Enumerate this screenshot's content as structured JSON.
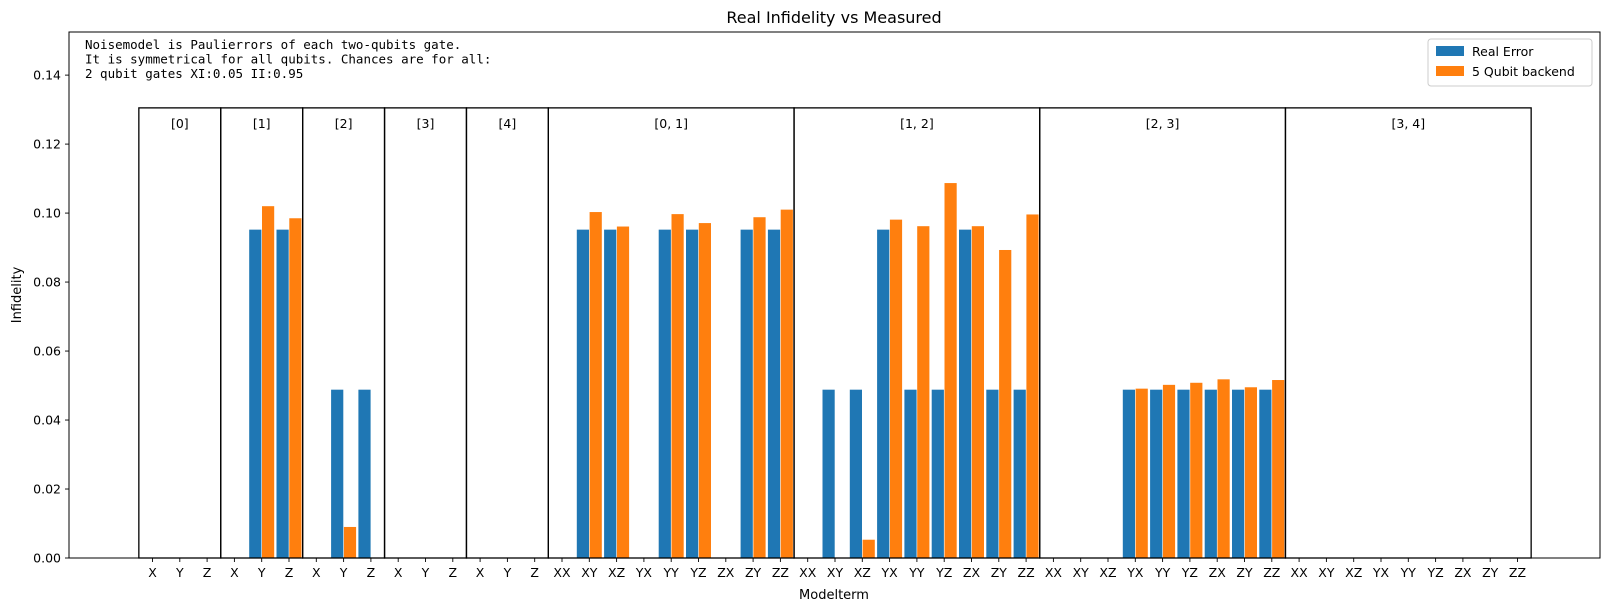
{
  "chart_data": {
    "type": "bar",
    "title": "Real Infidelity vs Measured",
    "xlabel": "Modelterm",
    "ylabel": "Infidelity",
    "ylim": [
      0,
      0.1525
    ],
    "yticks": [
      "0.00",
      "0.02",
      "0.04",
      "0.06",
      "0.08",
      "0.10",
      "0.12",
      "0.14"
    ],
    "annotation_lines": [
      "Noisemodel is Paulierrors of each two-qubits gate.",
      "It is symmetrical for all qubits. Chances are for all:",
      "2 qubit gates XI:0.05   II:0.95"
    ],
    "legend_position": "top-right",
    "colors": {
      "Real Error": "#1f77b4",
      "5 Qubit backend": "#ff7f0e"
    },
    "groups": [
      {
        "label": "[0]",
        "terms": [
          "X",
          "Y",
          "Z"
        ]
      },
      {
        "label": "[1]",
        "terms": [
          "X",
          "Y",
          "Z"
        ]
      },
      {
        "label": "[2]",
        "terms": [
          "X",
          "Y",
          "Z"
        ]
      },
      {
        "label": "[3]",
        "terms": [
          "X",
          "Y",
          "Z"
        ]
      },
      {
        "label": "[4]",
        "terms": [
          "X",
          "Y",
          "Z"
        ]
      },
      {
        "label": "[0, 1]",
        "terms": [
          "XX",
          "XY",
          "XZ",
          "YX",
          "YY",
          "YZ",
          "ZX",
          "ZY",
          "ZZ"
        ]
      },
      {
        "label": "[1, 2]",
        "terms": [
          "XX",
          "XY",
          "XZ",
          "YX",
          "YY",
          "YZ",
          "ZX",
          "ZY",
          "ZZ"
        ]
      },
      {
        "label": "[2, 3]",
        "terms": [
          "XX",
          "XY",
          "XZ",
          "YX",
          "YY",
          "YZ",
          "ZX",
          "ZY",
          "ZZ"
        ]
      },
      {
        "label": "[3, 4]",
        "terms": [
          "XX",
          "XY",
          "XZ",
          "YX",
          "YY",
          "YZ",
          "ZX",
          "ZY",
          "ZZ"
        ]
      }
    ],
    "group_box_top": 0.1305,
    "series": [
      {
        "name": "Real Error",
        "values": [
          0,
          0,
          0,
          0,
          0.0952,
          0.0952,
          0,
          0.0488,
          0.0488,
          0,
          0,
          0,
          0,
          0,
          0,
          0,
          0.0952,
          0.0952,
          0,
          0.0952,
          0.0952,
          0,
          0.0952,
          0.0952,
          0,
          0.0488,
          0.0488,
          0.0952,
          0.0488,
          0.0488,
          0.0952,
          0.0488,
          0.0488,
          0,
          0,
          0,
          0.0488,
          0.0488,
          0.0488,
          0.0488,
          0.0488,
          0.0488,
          0,
          0,
          0,
          0,
          0,
          0,
          0,
          0,
          0
        ]
      },
      {
        "name": "5 Qubit backend",
        "values": [
          0,
          0,
          0,
          0,
          0.102,
          0.0985,
          0,
          0.009,
          0,
          0,
          0,
          0,
          0,
          0,
          0,
          0,
          0.1003,
          0.0961,
          0,
          0.0997,
          0.0971,
          0,
          0.0988,
          0.101,
          0,
          0,
          0.0053,
          0.0981,
          0.0962,
          0.1087,
          0.0962,
          0.0893,
          0.0996,
          0,
          0,
          0,
          0.0491,
          0.0502,
          0.0508,
          0.0518,
          0.0495,
          0.0516,
          0,
          0,
          0,
          0,
          0,
          0,
          0,
          0,
          0
        ]
      }
    ]
  }
}
